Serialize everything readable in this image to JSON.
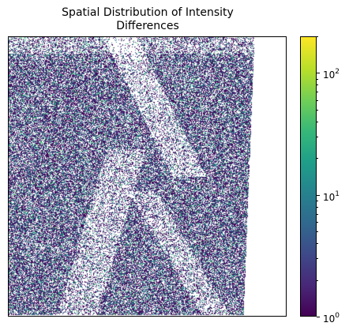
{
  "chart_data": {
    "type": "heatmap",
    "title": "Spatial Distribution of Intensity\nDifferences",
    "title_lines": [
      "Spatial Distribution of Intensity",
      "Differences"
    ],
    "xlabel": "",
    "ylabel": "",
    "axes_ticks_visible": false,
    "colormap": "viridis",
    "color_scale": "log",
    "color_range": [
      1,
      200
    ],
    "colorbar": {
      "scale": "log",
      "major_ticks": [
        {
          "value": 1,
          "base": "10",
          "exp": "0"
        },
        {
          "value": 10,
          "base": "10",
          "exp": "1"
        },
        {
          "value": 100,
          "base": "10",
          "exp": "2"
        }
      ],
      "minor_ticks": [
        2,
        3,
        4,
        5,
        6,
        7,
        8,
        9,
        20,
        30,
        40,
        50,
        60,
        70,
        80,
        90,
        200
      ]
    },
    "grid": false,
    "background_value": "none (white)",
    "colors": {
      "low": "#440154",
      "mid": "#21918c",
      "high": "#fde725"
    }
  }
}
